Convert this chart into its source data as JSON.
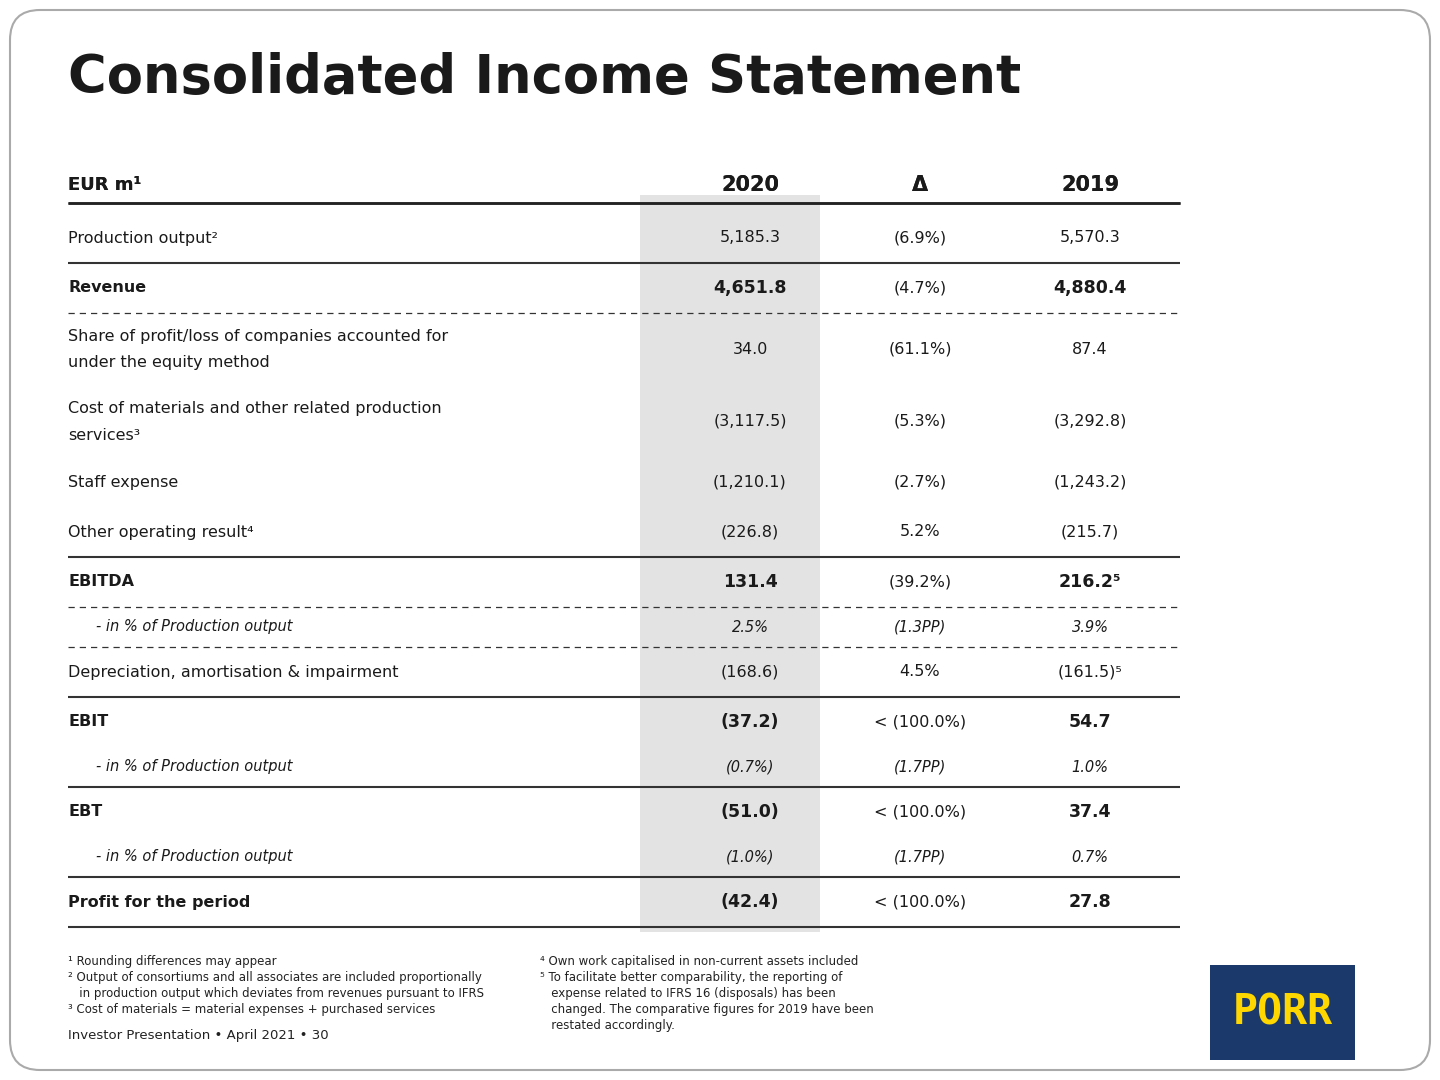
{
  "title": "Consolidated Income Statement",
  "bg_color": "#FFFFFF",
  "highlight_col_bg": "#E3E3E3",
  "text_color": "#1a1a1a",
  "footer_color": "#222222",
  "header_row": [
    "EUR m¹",
    "2020",
    "Δ",
    "2019"
  ],
  "rows": [
    {
      "label": "Production output²",
      "col2020": "5,185.3",
      "coldelta": "(6.9%)",
      "col2019": "5,570.3",
      "bold": false,
      "italic": false,
      "top_border": "none",
      "bottom_border": "solid",
      "multiline": false
    },
    {
      "label": "Revenue",
      "col2020": "4,651.8",
      "coldelta": "(4.7%)",
      "col2019": "4,880.4",
      "bold": true,
      "italic": false,
      "top_border": "none",
      "bottom_border": "dashed",
      "multiline": false
    },
    {
      "label": "Share of profit/loss of companies accounted for\nunder the equity method",
      "col2020": "34.0",
      "coldelta": "(61.1%)",
      "col2019": "87.4",
      "bold": false,
      "italic": false,
      "top_border": "none",
      "bottom_border": "none",
      "multiline": true
    },
    {
      "label": "Cost of materials and other related production\nservices³",
      "col2020": "(3,117.5)",
      "coldelta": "(5.3%)",
      "col2019": "(3,292.8)",
      "bold": false,
      "italic": false,
      "top_border": "none",
      "bottom_border": "none",
      "multiline": true
    },
    {
      "label": "Staff expense",
      "col2020": "(1,210.1)",
      "coldelta": "(2.7%)",
      "col2019": "(1,243.2)",
      "bold": false,
      "italic": false,
      "top_border": "none",
      "bottom_border": "none",
      "multiline": false
    },
    {
      "label": "Other operating result⁴",
      "col2020": "(226.8)",
      "coldelta": "5.2%",
      "col2019": "(215.7)",
      "bold": false,
      "italic": false,
      "top_border": "none",
      "bottom_border": "solid",
      "multiline": false
    },
    {
      "label": "EBITDA",
      "col2020": "131.4",
      "coldelta": "(39.2%)",
      "col2019": "216.2⁵",
      "bold": true,
      "italic": false,
      "top_border": "none",
      "bottom_border": "none",
      "multiline": false
    },
    {
      "label": "- in % of Production output",
      "col2020": "2.5%",
      "coldelta": "(1.3PP)",
      "col2019": "3.9%",
      "bold": false,
      "italic": true,
      "top_border": "dashed",
      "bottom_border": "dashed",
      "multiline": false
    },
    {
      "label": "Depreciation, amortisation & impairment",
      "col2020": "(168.6)",
      "coldelta": "4.5%",
      "col2019": "(161.5)⁵",
      "bold": false,
      "italic": false,
      "top_border": "none",
      "bottom_border": "solid",
      "multiline": false
    },
    {
      "label": "EBIT",
      "col2020": "(37.2)",
      "coldelta": "< (100.0%)",
      "col2019": "54.7",
      "bold": true,
      "italic": false,
      "top_border": "none",
      "bottom_border": "none",
      "multiline": false
    },
    {
      "label": "- in % of Production output",
      "col2020": "(0.7%)",
      "coldelta": "(1.7PP)",
      "col2019": "1.0%",
      "bold": false,
      "italic": true,
      "top_border": "none",
      "bottom_border": "solid",
      "multiline": false
    },
    {
      "label": "EBT",
      "col2020": "(51.0)",
      "coldelta": "< (100.0%)",
      "col2019": "37.4",
      "bold": true,
      "italic": false,
      "top_border": "none",
      "bottom_border": "none",
      "multiline": false
    },
    {
      "label": "- in % of Production output",
      "col2020": "(1.0%)",
      "coldelta": "(1.7PP)",
      "col2019": "0.7%",
      "bold": false,
      "italic": true,
      "top_border": "none",
      "bottom_border": "solid",
      "multiline": false
    },
    {
      "label": "Profit for the period",
      "col2020": "(42.4)",
      "coldelta": "< (100.0%)",
      "col2019": "27.8",
      "bold": true,
      "italic": false,
      "top_border": "none",
      "bottom_border": "solid",
      "multiline": false
    }
  ],
  "footnotes_left": [
    "¹ Rounding differences may appear",
    "² Output of consortiums and all associates are included proportionally",
    "   in production output which deviates from revenues pursuant to IFRS",
    "³ Cost of materials = material expenses + purchased services"
  ],
  "footnotes_right": [
    "⁴ Own work capitalised in non-current assets included",
    "⁵ To facilitate better comparability, the reporting of",
    "   expense related to IFRS 16 (disposals) has been",
    "   changed. The comparative figures for 2019 have been",
    "   restated accordingly."
  ],
  "footer_text": "Investor Presentation • April 2021 • 30",
  "porr_logo_bg": "#1B3A6B",
  "porr_logo_text": "PORR",
  "porr_logo_text_color": "#FFD700"
}
